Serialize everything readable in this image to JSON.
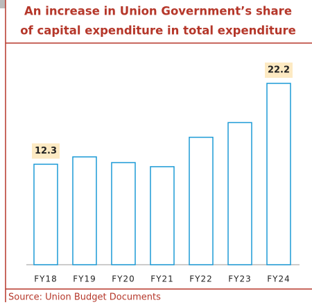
{
  "chart_data": {
    "type": "bar",
    "title": [
      "An increase in Union Government’s share",
      "of capital expenditure in total expenditure"
    ],
    "categories": [
      "FY18",
      "FY19",
      "FY20",
      "FY21",
      "FY22",
      "FY23",
      "FY24"
    ],
    "values": [
      12.3,
      13.2,
      12.5,
      12.0,
      15.6,
      17.4,
      22.2
    ],
    "value_labels": [
      "12.3",
      null,
      null,
      null,
      null,
      null,
      "22.2"
    ],
    "color": "#1b9ad6",
    "source": "Source: Union Budget Documents"
  }
}
